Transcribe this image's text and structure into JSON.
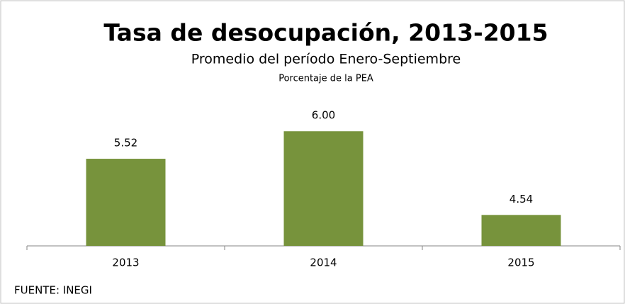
{
  "chart_data": {
    "type": "bar",
    "title": "Tasa de desocupación, 2013-2015",
    "subtitle": "Promedio del período Enero-Septiembre",
    "unit_label": "Porcentaje de la PEA",
    "categories": [
      "2013",
      "2014",
      "2015"
    ],
    "values": [
      5.52,
      6.0,
      4.54
    ],
    "value_labels": [
      "5.52",
      "6.00",
      "4.54"
    ],
    "color": "#77933c",
    "ylim": [
      4,
      6.25
    ],
    "source": "FUENTE: INEGI"
  }
}
